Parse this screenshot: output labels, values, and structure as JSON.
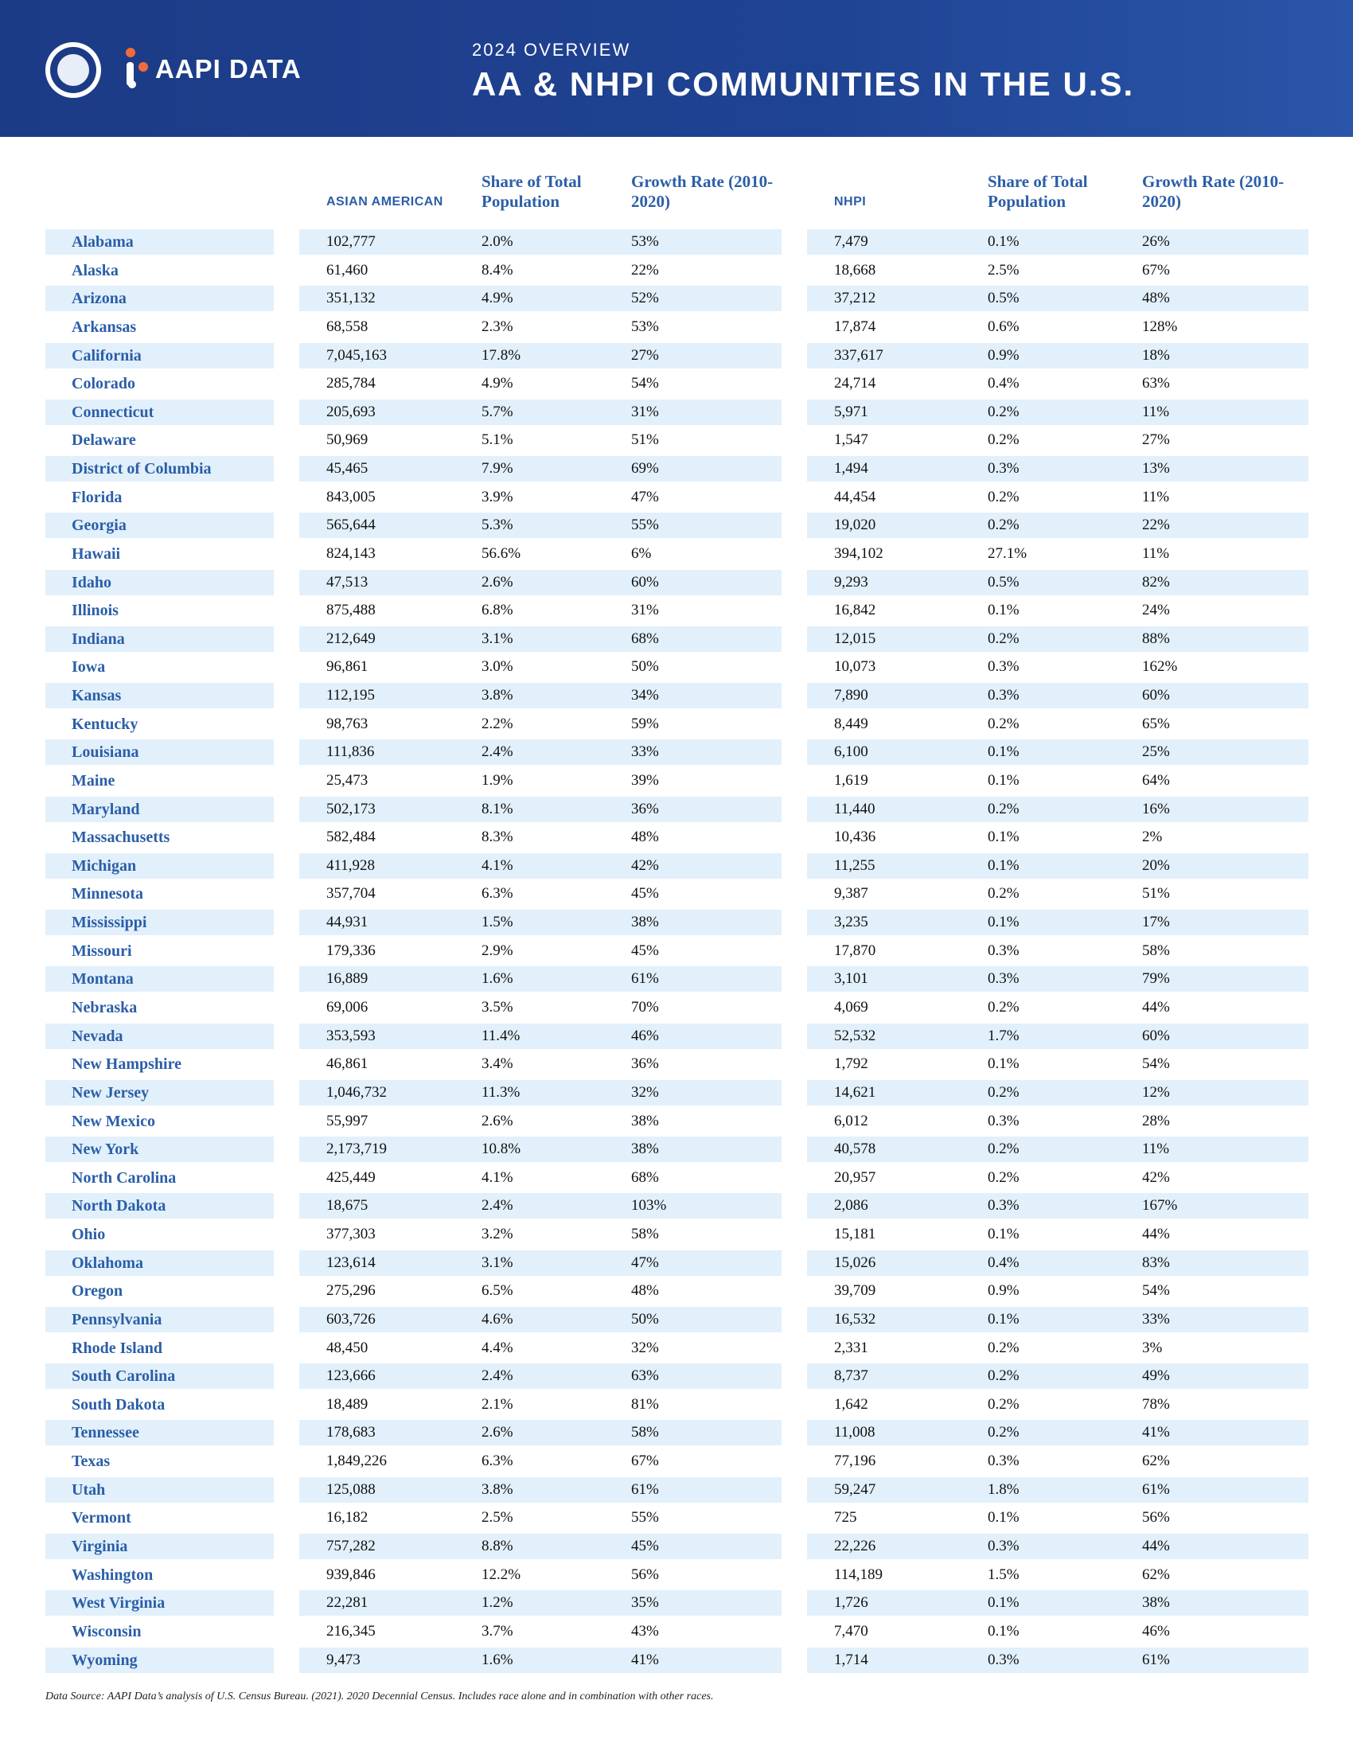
{
  "header": {
    "logo_text": "AAPI DATA",
    "overline": "2024 OVERVIEW",
    "title": "AA & NHPI COMMUNITIES IN THE U.S."
  },
  "table": {
    "columns": [
      "ASIAN AMERICAN",
      "Share of Total Population",
      "Growth Rate (2010-2020)",
      "NHPI",
      "Share of Total Population",
      "Growth Rate (2010-2020)"
    ],
    "rows": [
      [
        "Alabama",
        "102,777",
        "2.0%",
        "53%",
        "7,479",
        "0.1%",
        "26%"
      ],
      [
        "Alaska",
        "61,460",
        "8.4%",
        "22%",
        "18,668",
        "2.5%",
        "67%"
      ],
      [
        "Arizona",
        "351,132",
        "4.9%",
        "52%",
        "37,212",
        "0.5%",
        "48%"
      ],
      [
        "Arkansas",
        "68,558",
        "2.3%",
        "53%",
        "17,874",
        "0.6%",
        "128%"
      ],
      [
        "California",
        "7,045,163",
        "17.8%",
        "27%",
        "337,617",
        "0.9%",
        "18%"
      ],
      [
        "Colorado",
        "285,784",
        "4.9%",
        "54%",
        "24,714",
        "0.4%",
        "63%"
      ],
      [
        "Connecticut",
        "205,693",
        "5.7%",
        "31%",
        "5,971",
        "0.2%",
        "11%"
      ],
      [
        "Delaware",
        "50,969",
        "5.1%",
        "51%",
        "1,547",
        "0.2%",
        "27%"
      ],
      [
        "District of Columbia",
        "45,465",
        "7.9%",
        "69%",
        "1,494",
        "0.3%",
        "13%"
      ],
      [
        "Florida",
        "843,005",
        "3.9%",
        "47%",
        "44,454",
        "0.2%",
        "11%"
      ],
      [
        "Georgia",
        "565,644",
        "5.3%",
        "55%",
        "19,020",
        "0.2%",
        "22%"
      ],
      [
        "Hawaii",
        "824,143",
        "56.6%",
        "6%",
        "394,102",
        "27.1%",
        "11%"
      ],
      [
        "Idaho",
        "47,513",
        "2.6%",
        "60%",
        "9,293",
        "0.5%",
        "82%"
      ],
      [
        "Illinois",
        "875,488",
        "6.8%",
        "31%",
        "16,842",
        "0.1%",
        "24%"
      ],
      [
        "Indiana",
        "212,649",
        "3.1%",
        "68%",
        "12,015",
        "0.2%",
        "88%"
      ],
      [
        "Iowa",
        "96,861",
        "3.0%",
        "50%",
        "10,073",
        "0.3%",
        "162%"
      ],
      [
        "Kansas",
        "112,195",
        "3.8%",
        "34%",
        "7,890",
        "0.3%",
        "60%"
      ],
      [
        "Kentucky",
        "98,763",
        "2.2%",
        "59%",
        "8,449",
        "0.2%",
        "65%"
      ],
      [
        "Louisiana",
        "111,836",
        "2.4%",
        "33%",
        "6,100",
        "0.1%",
        "25%"
      ],
      [
        "Maine",
        "25,473",
        "1.9%",
        "39%",
        "1,619",
        "0.1%",
        "64%"
      ],
      [
        "Maryland",
        "502,173",
        "8.1%",
        "36%",
        "11,440",
        "0.2%",
        "16%"
      ],
      [
        "Massachusetts",
        "582,484",
        "8.3%",
        "48%",
        "10,436",
        "0.1%",
        "2%"
      ],
      [
        "Michigan",
        "411,928",
        "4.1%",
        "42%",
        "11,255",
        "0.1%",
        "20%"
      ],
      [
        "Minnesota",
        "357,704",
        "6.3%",
        "45%",
        "9,387",
        "0.2%",
        "51%"
      ],
      [
        "Mississippi",
        "44,931",
        "1.5%",
        "38%",
        "3,235",
        "0.1%",
        "17%"
      ],
      [
        "Missouri",
        "179,336",
        "2.9%",
        "45%",
        "17,870",
        "0.3%",
        "58%"
      ],
      [
        "Montana",
        "16,889",
        "1.6%",
        "61%",
        "3,101",
        "0.3%",
        "79%"
      ],
      [
        "Nebraska",
        "69,006",
        "3.5%",
        "70%",
        "4,069",
        "0.2%",
        "44%"
      ],
      [
        "Nevada",
        "353,593",
        "11.4%",
        "46%",
        "52,532",
        "1.7%",
        "60%"
      ],
      [
        "New Hampshire",
        "46,861",
        "3.4%",
        "36%",
        "1,792",
        "0.1%",
        "54%"
      ],
      [
        "New Jersey",
        "1,046,732",
        "11.3%",
        "32%",
        "14,621",
        "0.2%",
        "12%"
      ],
      [
        "New Mexico",
        "55,997",
        "2.6%",
        "38%",
        "6,012",
        "0.3%",
        "28%"
      ],
      [
        "New York",
        "2,173,719",
        "10.8%",
        "38%",
        "40,578",
        "0.2%",
        "11%"
      ],
      [
        "North Carolina",
        "425,449",
        "4.1%",
        "68%",
        "20,957",
        "0.2%",
        "42%"
      ],
      [
        "North Dakota",
        "18,675",
        "2.4%",
        "103%",
        "2,086",
        "0.3%",
        "167%"
      ],
      [
        "Ohio",
        "377,303",
        "3.2%",
        "58%",
        "15,181",
        "0.1%",
        "44%"
      ],
      [
        "Oklahoma",
        "123,614",
        "3.1%",
        "47%",
        "15,026",
        "0.4%",
        "83%"
      ],
      [
        "Oregon",
        "275,296",
        "6.5%",
        "48%",
        "39,709",
        "0.9%",
        "54%"
      ],
      [
        "Pennsylvania",
        "603,726",
        "4.6%",
        "50%",
        "16,532",
        "0.1%",
        "33%"
      ],
      [
        "Rhode Island",
        "48,450",
        "4.4%",
        "32%",
        "2,331",
        "0.2%",
        "3%"
      ],
      [
        "South Carolina",
        "123,666",
        "2.4%",
        "63%",
        "8,737",
        "0.2%",
        "49%"
      ],
      [
        "South Dakota",
        "18,489",
        "2.1%",
        "81%",
        "1,642",
        "0.2%",
        "78%"
      ],
      [
        "Tennessee",
        "178,683",
        "2.6%",
        "58%",
        "11,008",
        "0.2%",
        "41%"
      ],
      [
        "Texas",
        "1,849,226",
        "6.3%",
        "67%",
        "77,196",
        "0.3%",
        "62%"
      ],
      [
        "Utah",
        "125,088",
        "3.8%",
        "61%",
        "59,247",
        "1.8%",
        "61%"
      ],
      [
        "Vermont",
        "16,182",
        "2.5%",
        "55%",
        "725",
        "0.1%",
        "56%"
      ],
      [
        "Virginia",
        "757,282",
        "8.8%",
        "45%",
        "22,226",
        "0.3%",
        "44%"
      ],
      [
        "Washington",
        "939,846",
        "12.2%",
        "56%",
        "114,189",
        "1.5%",
        "62%"
      ],
      [
        "West Virginia",
        "22,281",
        "1.2%",
        "35%",
        "1,726",
        "0.1%",
        "38%"
      ],
      [
        "Wisconsin",
        "216,345",
        "3.7%",
        "43%",
        "7,470",
        "0.1%",
        "46%"
      ],
      [
        "Wyoming",
        "9,473",
        "1.6%",
        "41%",
        "1,714",
        "0.3%",
        "61%"
      ]
    ]
  },
  "footnote": "Data Source: AAPI Data’s analysis of U.S. Census Bureau. (2021). 2020 Decennial Census. Includes race alone and in combination with other races."
}
